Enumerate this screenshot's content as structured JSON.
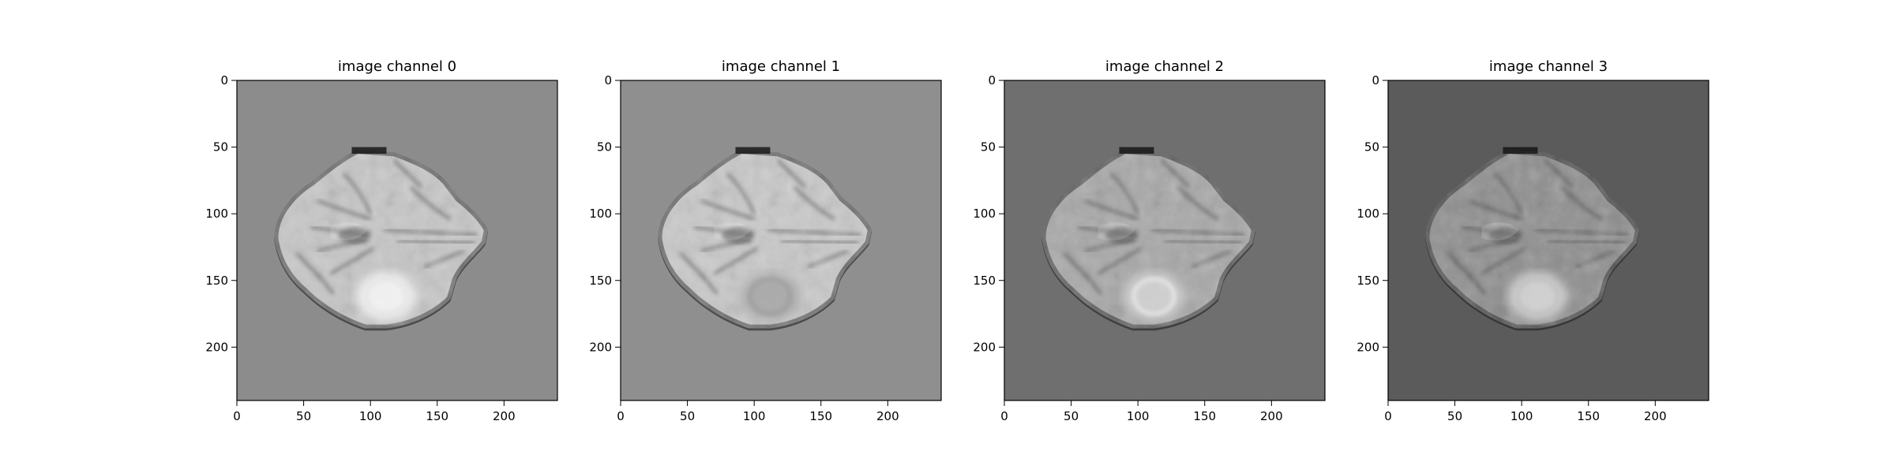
{
  "figure": {
    "panels": [
      {
        "title": "image channel 0",
        "background": "#8c8c8c",
        "brain_base": "#c7c7c7",
        "lesion": "#f4f4f4",
        "lesion_edge": "#e2e2e2"
      },
      {
        "title": "image channel 1",
        "background": "#8f8f8f",
        "brain_base": "#c9c9c9",
        "lesion": "#a9a9a9",
        "lesion_edge": "#9a9a9a"
      },
      {
        "title": "image channel 2",
        "background": "#6f6f6f",
        "brain_base": "#a8a8a8",
        "lesion": "#d3d3d3",
        "lesion_edge": "#efefef"
      },
      {
        "title": "image channel 3",
        "background": "#5b5b5b",
        "brain_base": "#8f8f8f",
        "lesion": "#d6d6d6",
        "lesion_edge": "#bdbdbd"
      }
    ],
    "x_ticks": [
      "0",
      "50",
      "100",
      "150",
      "200"
    ],
    "y_ticks": [
      "0",
      "50",
      "100",
      "150",
      "200"
    ],
    "image_size": [
      240,
      240
    ]
  }
}
